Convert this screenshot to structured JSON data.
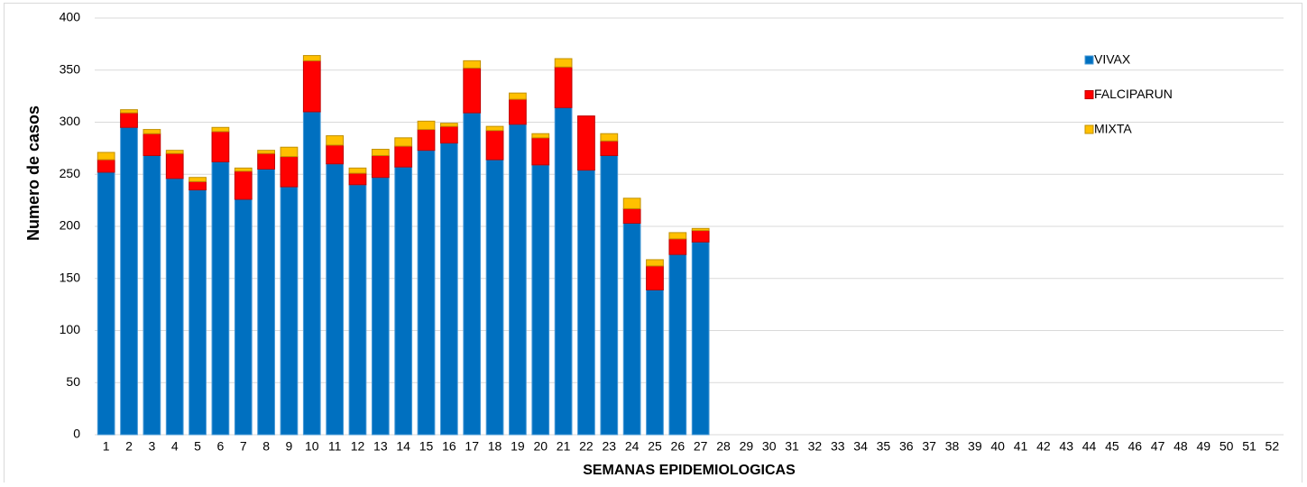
{
  "chart_data": {
    "type": "stacked_bar",
    "xlabel": "SEMANAS EPIDEMIOLOGICAS",
    "ylabel": "Numero de casos",
    "categories": [
      "1",
      "2",
      "3",
      "4",
      "5",
      "6",
      "7",
      "8",
      "9",
      "10",
      "11",
      "12",
      "13",
      "14",
      "15",
      "16",
      "17",
      "18",
      "19",
      "20",
      "21",
      "22",
      "23",
      "24",
      "25",
      "26",
      "27",
      "28",
      "29",
      "30",
      "31",
      "32",
      "33",
      "34",
      "35",
      "36",
      "37",
      "38",
      "39",
      "40",
      "41",
      "42",
      "43",
      "44",
      "45",
      "46",
      "47",
      "48",
      "49",
      "50",
      "51",
      "52"
    ],
    "series": [
      {
        "name": "VIVAX",
        "color": "#0070c0",
        "values": [
          252,
          295,
          268,
          246,
          235,
          262,
          226,
          255,
          238,
          310,
          260,
          240,
          247,
          257,
          273,
          280,
          309,
          264,
          298,
          259,
          314,
          254,
          268,
          203,
          139,
          173,
          185,
          null,
          null,
          null,
          null,
          null,
          null,
          null,
          null,
          null,
          null,
          null,
          null,
          null,
          null,
          null,
          null,
          null,
          null,
          null,
          null,
          null,
          null,
          null,
          null,
          null
        ]
      },
      {
        "name": "FALCIPARUN",
        "color": "#ff0000",
        "values": [
          12,
          14,
          21,
          24,
          8,
          29,
          27,
          15,
          29,
          49,
          18,
          11,
          21,
          20,
          20,
          16,
          43,
          28,
          24,
          26,
          39,
          52,
          14,
          14,
          23,
          15,
          11,
          null,
          null,
          null,
          null,
          null,
          null,
          null,
          null,
          null,
          null,
          null,
          null,
          null,
          null,
          null,
          null,
          null,
          null,
          null,
          null,
          null,
          null,
          null,
          null,
          null
        ]
      },
      {
        "name": "MIXTA",
        "color": "#ffc000",
        "values": [
          7,
          3,
          4,
          3,
          4,
          4,
          3,
          3,
          9,
          5,
          9,
          5,
          6,
          8,
          8,
          3,
          7,
          4,
          6,
          4,
          8,
          0,
          7,
          10,
          6,
          6,
          2,
          null,
          null,
          null,
          null,
          null,
          null,
          null,
          null,
          null,
          null,
          null,
          null,
          null,
          null,
          null,
          null,
          null,
          null,
          null,
          null,
          null,
          null,
          null,
          null,
          null
        ]
      }
    ],
    "ylim": [
      0,
      400
    ],
    "yticks": [
      0,
      50,
      100,
      150,
      200,
      250,
      300,
      350,
      400
    ],
    "grid": true,
    "legend": "upper right"
  }
}
